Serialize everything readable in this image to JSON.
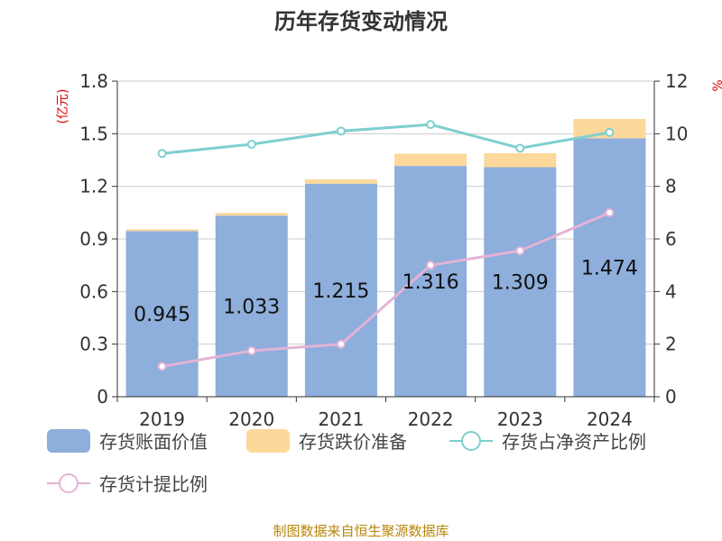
{
  "chart_data": {
    "type": "bar",
    "title": "历年存货变动情况",
    "left_axis_unit": "(亿元)",
    "right_axis_unit": "%",
    "categories": [
      "2019",
      "2020",
      "2021",
      "2022",
      "2023",
      "2024"
    ],
    "ylim_left": [
      0,
      1.8
    ],
    "yticks_left": [
      "0",
      "0.3",
      "0.6",
      "0.9",
      "1.2",
      "1.5",
      "1.8"
    ],
    "ylim_right": [
      0,
      12
    ],
    "yticks_right": [
      "0",
      "2",
      "4",
      "6",
      "8",
      "10",
      "12"
    ],
    "grid": true,
    "series": [
      {
        "name": "存货账面价值",
        "kind": "bar",
        "axis": "left",
        "color": "#8eaedb",
        "values": [
          0.945,
          1.033,
          1.215,
          1.316,
          1.309,
          1.474
        ],
        "labels": [
          "0.945",
          "1.033",
          "1.215",
          "1.316",
          "1.309",
          "1.474"
        ]
      },
      {
        "name": "存货跌价准备",
        "kind": "bar-stacked",
        "axis": "left",
        "color": "#fcd89a",
        "values": [
          0.01,
          0.015,
          0.025,
          0.07,
          0.08,
          0.11
        ]
      },
      {
        "name": "存货占净资产比例",
        "kind": "line",
        "axis": "right",
        "color": "#7fcfcf",
        "values": [
          9.25,
          9.6,
          10.1,
          10.35,
          9.45,
          10.05
        ]
      },
      {
        "name": "存货计提比例",
        "kind": "line",
        "axis": "right",
        "color": "#e4b3d6",
        "values": [
          1.15,
          1.75,
          2.0,
          5.0,
          5.55,
          7.0
        ]
      }
    ]
  },
  "footer": {
    "source": "制图数据来自恒生聚源数据库"
  }
}
